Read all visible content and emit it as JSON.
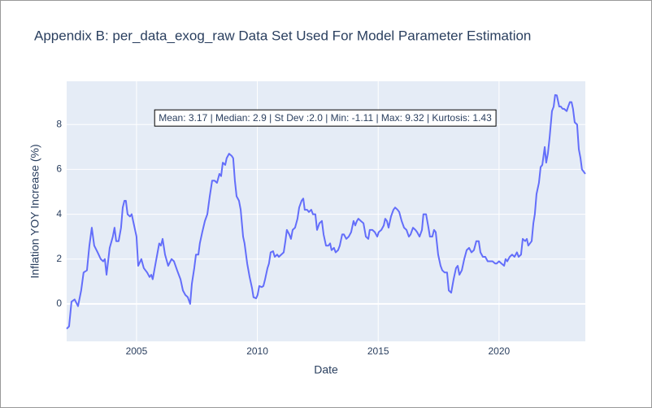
{
  "chart_data": {
    "type": "line",
    "title": "Appendix B: per_data_exog_raw Data Set Used For Model Parameter Estimation",
    "xlabel": "Date",
    "ylabel": "Inflation YOY Increase (%)",
    "annotation": "Mean: 3.17 | Median: 2.9 | St Dev :2.0 | Min: -1.11 | Max: 9.32 | Kurtosis: 1.43",
    "color": "#636efa",
    "grid": true,
    "xlim": [
      2002.11,
      2023.57
    ],
    "xticks": [
      2005,
      2010,
      2015,
      2020
    ],
    "ylim": [
      -1.67,
      9.93
    ],
    "yticks": [
      0,
      2,
      4,
      6,
      8
    ],
    "x": [
      2002.11,
      2002.21,
      2002.31,
      2002.44,
      2002.58,
      2002.71,
      2002.81,
      2002.95,
      2003.05,
      2003.15,
      2003.25,
      2003.39,
      2003.52,
      2003.62,
      2003.69,
      2003.76,
      2003.89,
      2004.02,
      2004.09,
      2004.16,
      2004.26,
      2004.36,
      2004.43,
      2004.5,
      2004.56,
      2004.63,
      2004.73,
      2004.8,
      2004.9,
      2005.0,
      2005.07,
      2005.2,
      2005.3,
      2005.44,
      2005.54,
      2005.61,
      2005.67,
      2005.77,
      2005.94,
      2006.01,
      2006.08,
      2006.18,
      2006.31,
      2006.45,
      2006.55,
      2006.68,
      2006.82,
      2006.92,
      2007.02,
      2007.12,
      2007.22,
      2007.29,
      2007.39,
      2007.46,
      2007.56,
      2007.62,
      2007.72,
      2007.83,
      2007.93,
      2008.03,
      2008.13,
      2008.23,
      2008.33,
      2008.43,
      2008.5,
      2008.57,
      2008.67,
      2008.73,
      2008.83,
      2008.94,
      2009.0,
      2009.07,
      2009.14,
      2009.24,
      2009.31,
      2009.41,
      2009.47,
      2009.58,
      2009.68,
      2009.78,
      2009.84,
      2009.95,
      2010.01,
      2010.08,
      2010.18,
      2010.25,
      2010.32,
      2010.42,
      2010.48,
      2010.55,
      2010.65,
      2010.72,
      2010.82,
      2010.89,
      2010.99,
      2011.09,
      2011.16,
      2011.22,
      2011.32,
      2011.39,
      2011.46,
      2011.56,
      2011.66,
      2011.73,
      2011.83,
      2011.9,
      2011.96,
      2012.06,
      2012.13,
      2012.23,
      2012.3,
      2012.4,
      2012.47,
      2012.57,
      2012.67,
      2012.74,
      2012.84,
      2012.94,
      2013.01,
      2013.07,
      2013.17,
      2013.24,
      2013.34,
      2013.41,
      2013.51,
      2013.58,
      2013.68,
      2013.78,
      2013.88,
      2013.98,
      2014.05,
      2014.12,
      2014.18,
      2014.28,
      2014.39,
      2014.49,
      2014.59,
      2014.65,
      2014.76,
      2014.86,
      2014.96,
      2015.02,
      2015.13,
      2015.23,
      2015.29,
      2015.36,
      2015.43,
      2015.53,
      2015.63,
      2015.7,
      2015.8,
      2015.87,
      2015.97,
      2016.07,
      2016.17,
      2016.27,
      2016.34,
      2016.44,
      2016.54,
      2016.61,
      2016.71,
      2016.81,
      2016.87,
      2016.98,
      2017.08,
      2017.14,
      2017.24,
      2017.31,
      2017.38,
      2017.48,
      2017.58,
      2017.65,
      2017.75,
      2017.85,
      2017.92,
      2018.02,
      2018.12,
      2018.22,
      2018.29,
      2018.36,
      2018.46,
      2018.56,
      2018.66,
      2018.76,
      2018.86,
      2018.96,
      2019.06,
      2019.16,
      2019.23,
      2019.33,
      2019.43,
      2019.53,
      2019.63,
      2019.73,
      2019.84,
      2019.9,
      2020.0,
      2020.1,
      2020.21,
      2020.27,
      2020.34,
      2020.44,
      2020.54,
      2020.64,
      2020.74,
      2020.81,
      2020.91,
      2020.98,
      2021.08,
      2021.15,
      2021.21,
      2021.28,
      2021.35,
      2021.42,
      2021.48,
      2021.55,
      2021.65,
      2021.72,
      2021.79,
      2021.89,
      2021.95,
      2022.02,
      2022.09,
      2022.19,
      2022.26,
      2022.32,
      2022.39,
      2022.49,
      2022.56,
      2022.63,
      2022.69,
      2022.8,
      2022.86,
      2022.93,
      2023.0,
      2023.06,
      2023.13,
      2023.23,
      2023.3,
      2023.37,
      2023.43,
      2023.5,
      2023.57
    ],
    "values": [
      -1.11,
      -1.0,
      0.1,
      0.2,
      -0.1,
      0.6,
      1.4,
      1.5,
      2.6,
      3.4,
      2.6,
      2.3,
      2.0,
      1.9,
      2.0,
      1.3,
      2.5,
      3.0,
      3.4,
      2.8,
      2.8,
      3.4,
      4.3,
      4.6,
      4.6,
      4.0,
      3.9,
      4.0,
      3.5,
      3.0,
      1.7,
      2.0,
      1.6,
      1.4,
      1.2,
      1.3,
      1.1,
      1.7,
      2.7,
      2.6,
      2.9,
      2.2,
      1.7,
      2.0,
      1.9,
      1.5,
      1.1,
      0.6,
      0.4,
      0.3,
      0.0,
      0.9,
      1.6,
      2.2,
      2.2,
      2.7,
      3.2,
      3.7,
      4.0,
      4.8,
      5.5,
      5.5,
      5.4,
      5.8,
      5.7,
      6.3,
      6.2,
      6.5,
      6.7,
      6.6,
      6.5,
      5.5,
      4.8,
      4.6,
      4.2,
      3.0,
      2.7,
      1.8,
      1.2,
      0.7,
      0.3,
      0.25,
      0.4,
      0.8,
      0.75,
      0.8,
      1.1,
      1.6,
      1.8,
      2.3,
      2.35,
      2.1,
      2.2,
      2.1,
      2.2,
      2.3,
      2.8,
      3.3,
      3.1,
      2.9,
      3.3,
      3.4,
      3.8,
      4.3,
      4.6,
      4.7,
      4.2,
      4.2,
      4.1,
      4.2,
      4.0,
      4.0,
      3.3,
      3.6,
      3.7,
      3.1,
      2.6,
      2.6,
      2.7,
      2.4,
      2.5,
      2.3,
      2.4,
      2.6,
      3.1,
      3.1,
      2.9,
      3.0,
      3.2,
      3.7,
      3.5,
      3.7,
      3.8,
      3.7,
      3.6,
      3.0,
      2.9,
      3.3,
      3.3,
      3.2,
      3.0,
      3.2,
      3.3,
      3.5,
      3.8,
      3.7,
      3.4,
      3.9,
      4.2,
      4.3,
      4.2,
      4.1,
      3.7,
      3.4,
      3.3,
      3.0,
      3.1,
      3.4,
      3.3,
      3.2,
      3.0,
      3.3,
      4.0,
      4.0,
      3.4,
      3.0,
      3.0,
      3.3,
      3.2,
      2.2,
      1.7,
      1.5,
      1.4,
      1.4,
      0.6,
      0.5,
      1.1,
      1.6,
      1.7,
      1.3,
      1.5,
      2.0,
      2.4,
      2.5,
      2.3,
      2.4,
      2.8,
      2.8,
      2.3,
      2.1,
      2.1,
      1.9,
      1.9,
      1.9,
      1.8,
      1.8,
      1.9,
      1.8,
      1.7,
      2.0,
      1.9,
      2.1,
      2.2,
      2.1,
      2.3,
      2.1,
      2.2,
      2.9,
      2.8,
      2.9,
      2.6,
      2.7,
      2.8,
      3.6,
      4.0,
      4.9,
      5.4,
      6.1,
      6.2,
      7.0,
      6.3,
      6.7,
      7.4,
      8.6,
      8.8,
      9.32,
      9.3,
      8.8,
      8.8,
      8.7,
      8.7,
      8.6,
      8.8,
      9.0,
      9.0,
      8.7,
      8.1,
      8.0,
      6.9,
      6.5,
      6.0,
      5.9,
      5.8
    ]
  }
}
